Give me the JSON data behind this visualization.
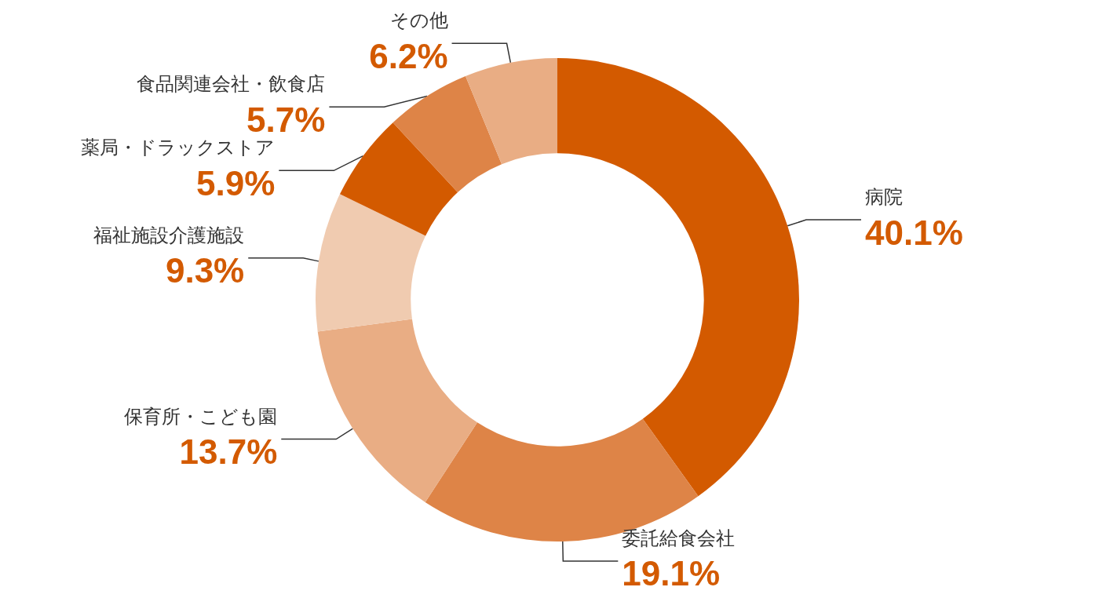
{
  "chart_data": {
    "type": "donut",
    "categories": [
      "病院",
      "委託給食会社",
      "保育所・こども園",
      "福祉施設介護施設",
      "薬局・ドラックストア",
      "食品関連会社・飲食店",
      "その他"
    ],
    "values": [
      40.1,
      19.1,
      13.7,
      9.3,
      5.9,
      5.7,
      6.2
    ],
    "value_labels": [
      "40.1%",
      "19.1%",
      "13.7%",
      "9.3%",
      "5.9%",
      "5.7%",
      "6.2%"
    ],
    "colors": [
      "#d35a00",
      "#de8447",
      "#e9ad84",
      "#f0cbb0",
      "#d35a00",
      "#de8447",
      "#e9ad84"
    ],
    "legend": false
  }
}
